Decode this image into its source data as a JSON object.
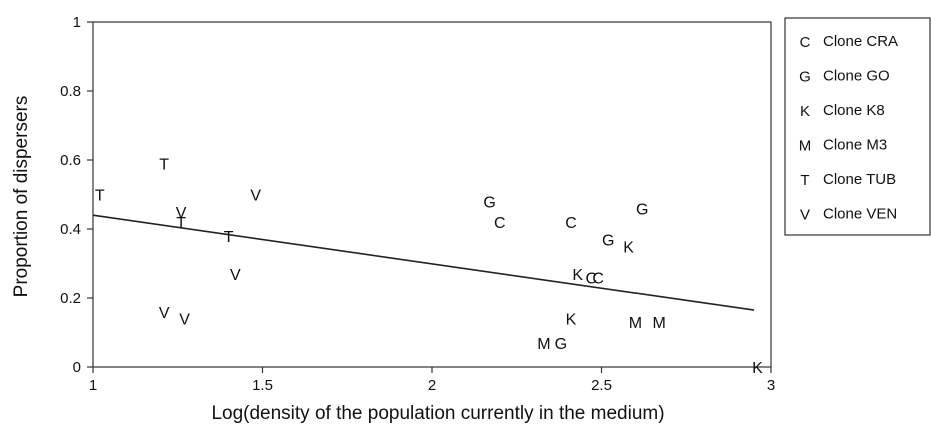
{
  "chart_data": {
    "type": "scatter",
    "title": "",
    "xlabel": "Log(density of the population currently in the medium)",
    "ylabel": "Proportion of dispersers",
    "xlim": [
      1,
      3
    ],
    "ylim": [
      0,
      1
    ],
    "xticks": [
      1,
      1.5,
      2,
      2.5,
      3
    ],
    "xtick_labels": [
      "1",
      "1.5",
      "2",
      "2.5",
      "3"
    ],
    "yticks": [
      0,
      0.2,
      0.4,
      0.6,
      0.8,
      1
    ],
    "ytick_labels": [
      "0",
      "0.2",
      "0.4",
      "0.6",
      "0.8",
      "1"
    ],
    "grid": false,
    "legend_position": "right",
    "legend": [
      {
        "symbol": "C",
        "label": "Clone CRA"
      },
      {
        "symbol": "G",
        "label": "Clone GO"
      },
      {
        "symbol": "K",
        "label": "Clone K8"
      },
      {
        "symbol": "M",
        "label": "Clone M3"
      },
      {
        "symbol": "T",
        "label": "Clone TUB"
      },
      {
        "symbol": "V",
        "label": "Clone VEN"
      }
    ],
    "series": [
      {
        "name": "Clone CRA",
        "symbol": "C",
        "points": [
          [
            2.2,
            0.42
          ],
          [
            2.41,
            0.42
          ],
          [
            2.47,
            0.26
          ],
          [
            2.49,
            0.26
          ]
        ]
      },
      {
        "name": "Clone GO",
        "symbol": "G",
        "points": [
          [
            2.17,
            0.48
          ],
          [
            2.52,
            0.37
          ],
          [
            2.62,
            0.46
          ],
          [
            2.38,
            0.07
          ]
        ]
      },
      {
        "name": "Clone K8",
        "symbol": "K",
        "points": [
          [
            2.43,
            0.27
          ],
          [
            2.58,
            0.35
          ],
          [
            2.41,
            0.14
          ],
          [
            2.96,
            0.0
          ]
        ]
      },
      {
        "name": "Clone M3",
        "symbol": "M",
        "points": [
          [
            2.6,
            0.13
          ],
          [
            2.67,
            0.13
          ],
          [
            2.33,
            0.07
          ]
        ]
      },
      {
        "name": "Clone TUB",
        "symbol": "T",
        "points": [
          [
            1.02,
            0.5
          ],
          [
            1.21,
            0.59
          ],
          [
            1.26,
            0.42
          ],
          [
            1.4,
            0.38
          ]
        ]
      },
      {
        "name": "Clone VEN",
        "symbol": "V",
        "points": [
          [
            1.26,
            0.45
          ],
          [
            1.48,
            0.5
          ],
          [
            1.42,
            0.27
          ],
          [
            1.21,
            0.16
          ],
          [
            1.27,
            0.14
          ]
        ]
      }
    ],
    "fit_line": {
      "x": [
        1,
        2.95
      ],
      "y": [
        0.44,
        0.165
      ]
    }
  }
}
